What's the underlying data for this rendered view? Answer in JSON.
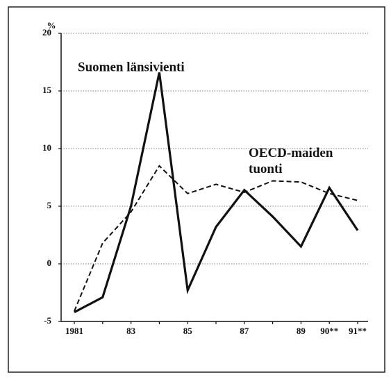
{
  "chart_data": {
    "type": "line",
    "y_label": "%",
    "categories": [
      "1981",
      null,
      "83",
      null,
      "85",
      null,
      "87",
      null,
      "89",
      "90**",
      "91**"
    ],
    "series": [
      {
        "name": "Suomen länsivienti",
        "color": "#111111",
        "dash": false,
        "values": [
          -4.2,
          -2.9,
          5.0,
          16.6,
          -2.3,
          3.2,
          6.4,
          4.1,
          1.5,
          6.6,
          2.9
        ]
      },
      {
        "name": "OECD-maiden tuonti",
        "color": "#111111",
        "dash": true,
        "values": [
          -4.1,
          1.8,
          4.5,
          8.5,
          6.1,
          6.9,
          6.2,
          7.2,
          7.1,
          6.1,
          5.5
        ]
      }
    ],
    "ylim": [
      -5,
      20
    ],
    "yticks": [
      -5,
      0,
      5,
      10,
      15,
      20
    ],
    "grid": true
  }
}
